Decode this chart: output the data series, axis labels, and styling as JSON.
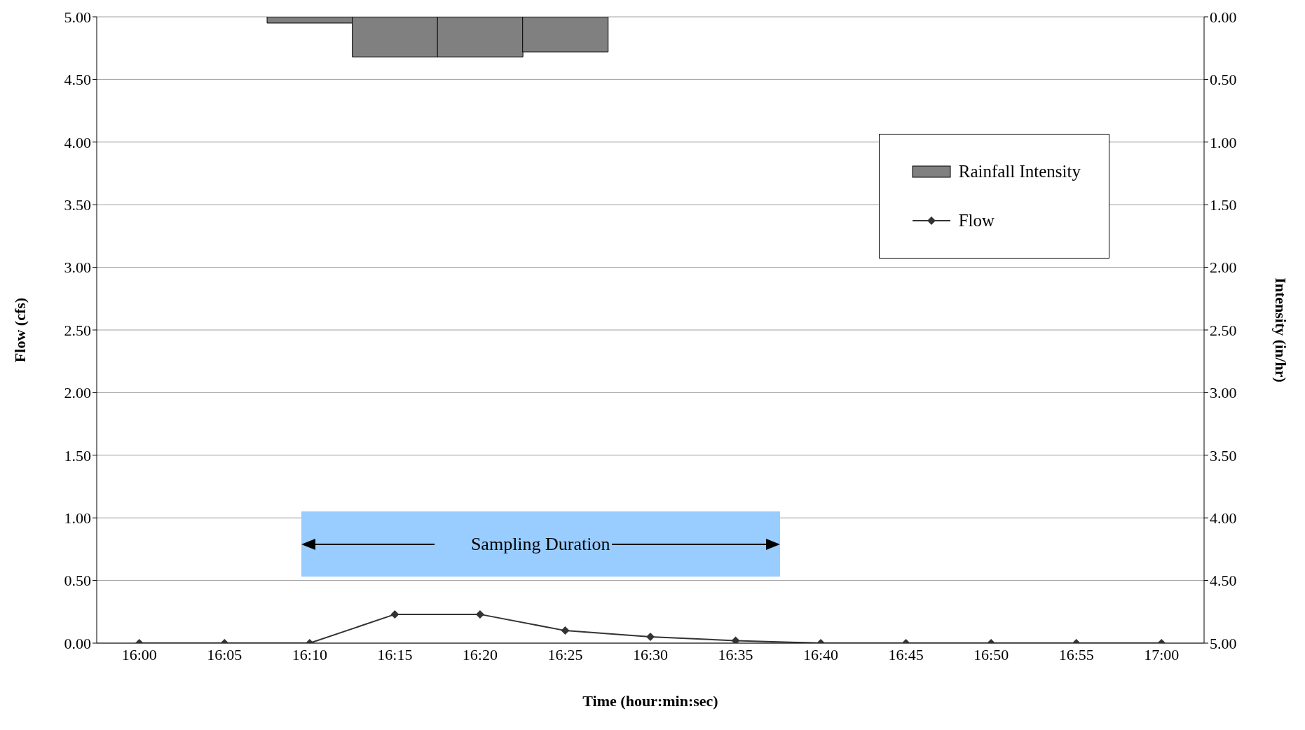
{
  "chart_data": {
    "type": "line",
    "categories": [
      "16:00",
      "16:05",
      "16:10",
      "16:15",
      "16:20",
      "16:25",
      "16:30",
      "16:35",
      "16:40",
      "16:45",
      "16:50",
      "16:55",
      "17:00"
    ],
    "series": [
      {
        "name": "Rainfall Intensity",
        "type": "bar",
        "axis": "y2",
        "color": "#808080",
        "values": [
          null,
          null,
          0.05,
          0.32,
          0.32,
          0.28,
          null,
          null,
          null,
          null,
          null,
          null,
          null
        ]
      },
      {
        "name": "Flow",
        "color": "#333333",
        "marker": "diamond",
        "values": [
          0,
          0,
          0,
          0.23,
          0.23,
          0.1,
          0.05,
          0.02,
          0,
          0,
          0,
          0,
          0
        ]
      }
    ],
    "xlabel": "Time (hour:min:sec)",
    "ylabel": "Flow (cfs)",
    "y2label": "Intensity (in/hr)",
    "ylim": [
      0,
      5
    ],
    "yticks": [
      {
        "value": 0,
        "label": "0.00"
      },
      {
        "value": 0.5,
        "label": "0.50"
      },
      {
        "value": 1,
        "label": "1.00"
      },
      {
        "value": 1.5,
        "label": "1.50"
      },
      {
        "value": 2,
        "label": "2.00"
      },
      {
        "value": 2.5,
        "label": "2.50"
      },
      {
        "value": 3,
        "label": "3.00"
      },
      {
        "value": 3.5,
        "label": "3.50"
      },
      {
        "value": 4,
        "label": "4.00"
      },
      {
        "value": 4.5,
        "label": "4.50"
      },
      {
        "value": 5,
        "label": "5.00"
      }
    ],
    "y2lim": [
      5,
      0
    ],
    "y2ticks": [
      {
        "value": 0,
        "label": "0.00"
      },
      {
        "value": 0.5,
        "label": "0.50"
      },
      {
        "value": 1,
        "label": "1.00"
      },
      {
        "value": 1.5,
        "label": "1.50"
      },
      {
        "value": 2,
        "label": "2.00"
      },
      {
        "value": 2.5,
        "label": "2.50"
      },
      {
        "value": 3,
        "label": "3.00"
      },
      {
        "value": 3.5,
        "label": "3.50"
      },
      {
        "value": 4,
        "label": "4.00"
      },
      {
        "value": 4.5,
        "label": "4.50"
      },
      {
        "value": 5,
        "label": "5.00"
      }
    ],
    "grid": "y",
    "legend": "top right",
    "annotations": [
      "Sampling Duration"
    ]
  }
}
